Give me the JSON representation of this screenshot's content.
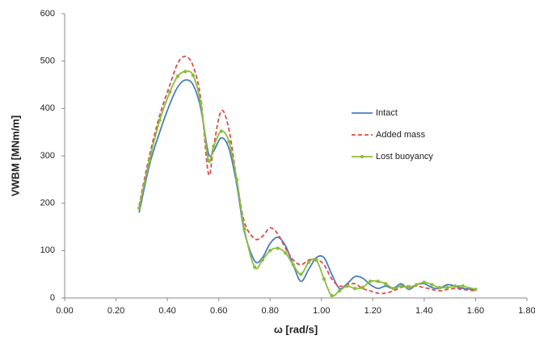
{
  "chart_data": {
    "type": "line",
    "x_label": "ω [rad/s]",
    "y_label": "VWBM [MNm/m]",
    "x": [
      0.29,
      0.33,
      0.37,
      0.41,
      0.44,
      0.47,
      0.5,
      0.53,
      0.56,
      0.58,
      0.61,
      0.64,
      0.67,
      0.7,
      0.74,
      0.77,
      0.8,
      0.83,
      0.86,
      0.89,
      0.92,
      0.95,
      0.98,
      1.01,
      1.04,
      1.07,
      1.1,
      1.13,
      1.16,
      1.19,
      1.22,
      1.25,
      1.28,
      1.31,
      1.34,
      1.37,
      1.4,
      1.43,
      1.46,
      1.49,
      1.52,
      1.55,
      1.6
    ],
    "series": [
      {
        "name": "Intact",
        "color": "#4a7ebb",
        "dash": "solid",
        "marker": false,
        "values": [
          180,
          280,
          350,
          410,
          445,
          460,
          450,
          400,
          305,
          310,
          338,
          315,
          240,
          140,
          78,
          85,
          115,
          128,
          110,
          70,
          35,
          60,
          85,
          85,
          50,
          20,
          30,
          45,
          42,
          28,
          20,
          25,
          20,
          30,
          18,
          28,
          30,
          22,
          20,
          28,
          25,
          20,
          18
        ]
      },
      {
        "name": "Added mass",
        "color": "#e04848",
        "dash": "dashed",
        "marker": false,
        "values": [
          195,
          300,
          385,
          450,
          495,
          510,
          490,
          420,
          262,
          320,
          395,
          355,
          250,
          160,
          125,
          130,
          148,
          135,
          105,
          80,
          70,
          80,
          82,
          70,
          40,
          25,
          28,
          30,
          20,
          15,
          10,
          10,
          15,
          22,
          25,
          25,
          22,
          18,
          15,
          18,
          20,
          18,
          15
        ]
      },
      {
        "name": "Lost buoyancy",
        "color": "#8bbd3c",
        "dash": "solid",
        "marker": true,
        "values": [
          190,
          290,
          375,
          435,
          468,
          478,
          470,
          410,
          290,
          320,
          352,
          330,
          250,
          145,
          65,
          80,
          100,
          105,
          95,
          70,
          50,
          75,
          80,
          40,
          5,
          15,
          25,
          20,
          22,
          35,
          35,
          30,
          20,
          25,
          22,
          28,
          33,
          28,
          22,
          22,
          25,
          25,
          18
        ]
      }
    ],
    "xlim": [
      0,
      1.8
    ],
    "xticks": [
      {
        "value": 0,
        "label": "0.00"
      },
      {
        "value": 0.2,
        "label": "0.20"
      },
      {
        "value": 0.4,
        "label": "0.40"
      },
      {
        "value": 0.6,
        "label": "0.60"
      },
      {
        "value": 0.8,
        "label": "0.80"
      },
      {
        "value": 1.0,
        "label": "1.00"
      },
      {
        "value": 1.2,
        "label": "1.20"
      },
      {
        "value": 1.4,
        "label": "1.40"
      },
      {
        "value": 1.6,
        "label": "1.60"
      },
      {
        "value": 1.8,
        "label": "1.80"
      }
    ],
    "ylim": [
      0,
      600
    ],
    "yticks": [
      0,
      100,
      200,
      300,
      400,
      500,
      600
    ],
    "grid": false,
    "legend_position": "right"
  }
}
